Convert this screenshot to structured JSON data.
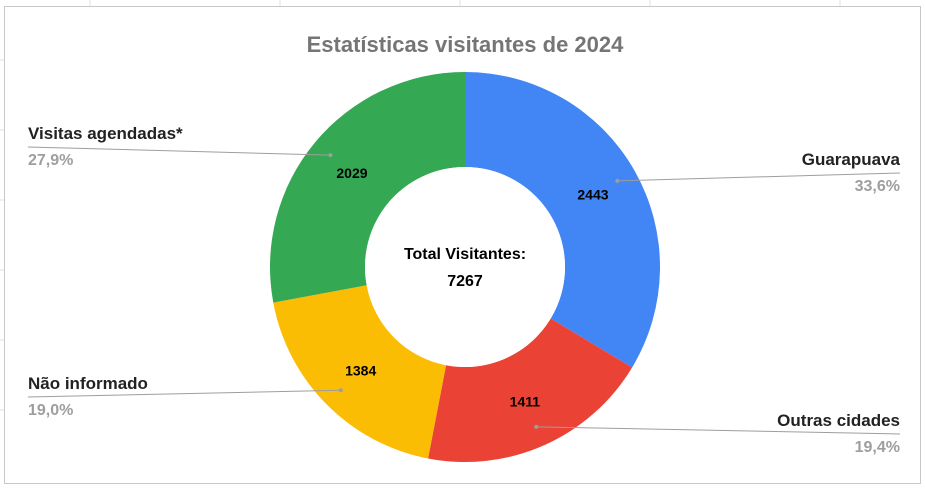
{
  "chart_data": {
    "type": "pie",
    "style": "donut",
    "title": "Estatísticas visitantes de 2024",
    "center_label": "Total Visitantes:",
    "center_value": "7267",
    "slices": [
      {
        "name": "Guarapuava",
        "value": 2443,
        "percent": "33,6%",
        "color": "#4285f4"
      },
      {
        "name": "Outras cidades",
        "value": 1411,
        "percent": "19,4%",
        "color": "#ea4335"
      },
      {
        "name": "Não informado",
        "value": 1384,
        "percent": "19,0%",
        "color": "#fbbc04"
      },
      {
        "name": "Visitas agendadas*",
        "value": 2029,
        "percent": "27,9%",
        "color": "#34a853"
      }
    ]
  }
}
